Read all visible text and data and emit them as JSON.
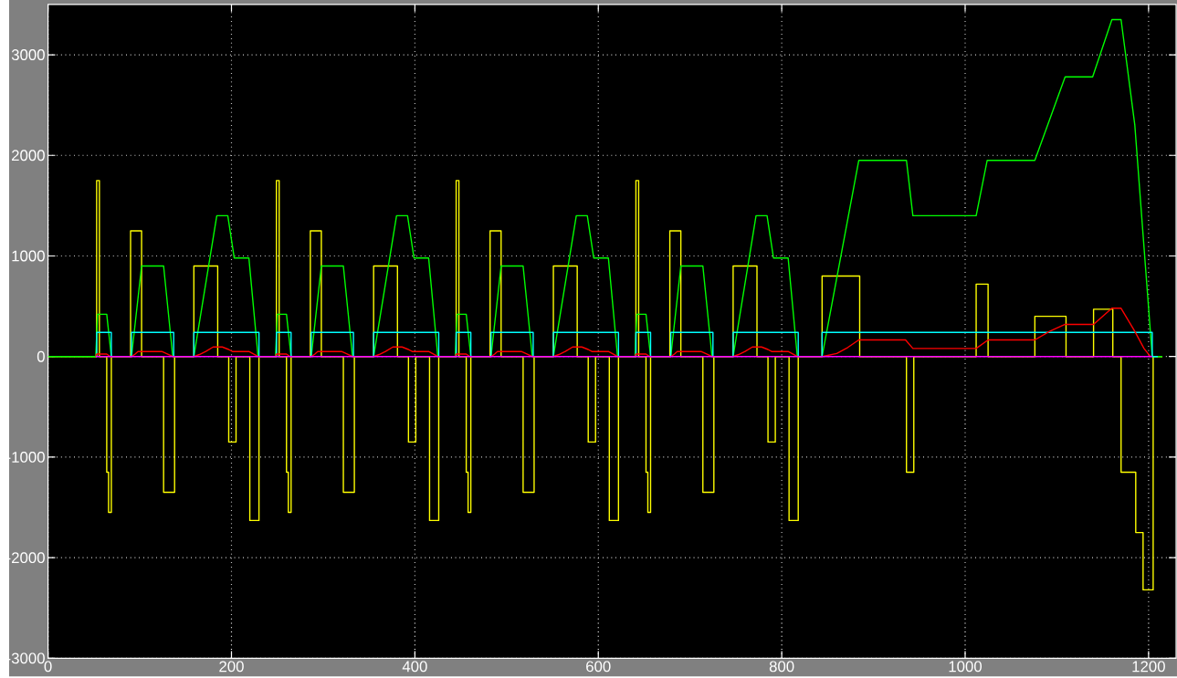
{
  "chart_data": {
    "type": "line",
    "xlim": [
      0,
      1230
    ],
    "ylim": [
      -3000,
      3500
    ],
    "xticks": [
      0,
      200,
      400,
      600,
      800,
      1000,
      1200
    ],
    "yticks": [
      -3000,
      -2000,
      -1000,
      0,
      1000,
      2000,
      3000
    ],
    "grid": true,
    "series": [
      {
        "type": "step",
        "color": "#ffff00",
        "x": [
          0,
          53,
          56,
          64,
          66,
          69,
          90,
          102,
          126,
          138,
          159,
          185,
          197,
          205,
          220,
          230,
          249,
          252,
          260,
          262,
          265,
          286,
          298,
          322,
          334,
          355,
          381,
          393,
          401,
          416,
          426,
          445,
          448,
          456,
          458,
          461,
          482,
          494,
          518,
          530,
          551,
          577,
          589,
          597,
          612,
          622,
          641,
          644,
          652,
          654,
          657,
          678,
          690,
          714,
          726,
          747,
          773,
          785,
          793,
          808,
          818,
          844,
          885,
          936,
          944,
          1012,
          1025,
          1076,
          1110,
          1140,
          1161,
          1170,
          1186,
          1194,
          1205,
          1215
        ],
        "values": [
          0,
          1750,
          0,
          -1150,
          -1550,
          0,
          1250,
          0,
          -1350,
          0,
          900,
          0,
          -850,
          0,
          -1630,
          0,
          1750,
          0,
          -1150,
          -1550,
          0,
          1250,
          0,
          -1350,
          0,
          900,
          0,
          -850,
          0,
          -1630,
          0,
          1750,
          0,
          -1150,
          -1550,
          0,
          1250,
          0,
          -1350,
          0,
          900,
          0,
          -850,
          0,
          -1630,
          0,
          1750,
          0,
          -1150,
          -1550,
          0,
          1250,
          0,
          -1350,
          0,
          900,
          0,
          -850,
          0,
          -1630,
          0,
          800,
          0,
          -1150,
          0,
          720,
          0,
          400,
          0,
          470,
          0,
          -1150,
          -1750,
          -2320,
          0,
          0
        ]
      },
      {
        "color": "#00ff00",
        "x": [
          0,
          52,
          54,
          64,
          66,
          69,
          91,
          102,
          126,
          136,
          159,
          184,
          196,
          203,
          219,
          229,
          248,
          250,
          260,
          262,
          265,
          287,
          298,
          322,
          332,
          355,
          380,
          392,
          399,
          415,
          425,
          444,
          446,
          456,
          458,
          461,
          483,
          494,
          518,
          528,
          551,
          576,
          588,
          595,
          611,
          621,
          640,
          642,
          652,
          654,
          657,
          679,
          690,
          714,
          724,
          747,
          772,
          784,
          791,
          807,
          817,
          844,
          884,
          936,
          943,
          1012,
          1024,
          1076,
          1109,
          1139,
          1160,
          1170,
          1185,
          1204,
          1215
        ],
        "values": [
          0,
          0,
          420,
          420,
          250,
          0,
          0,
          900,
          900,
          0,
          0,
          1400,
          1400,
          980,
          980,
          0,
          0,
          420,
          420,
          250,
          0,
          0,
          900,
          900,
          0,
          0,
          1400,
          1400,
          980,
          980,
          0,
          0,
          420,
          420,
          250,
          0,
          0,
          900,
          900,
          0,
          0,
          1400,
          1400,
          980,
          980,
          0,
          0,
          420,
          420,
          250,
          0,
          0,
          900,
          900,
          0,
          0,
          1400,
          1400,
          980,
          980,
          0,
          0,
          1950,
          1950,
          1400,
          1400,
          1950,
          1950,
          2780,
          2780,
          3350,
          3350,
          2300,
          0,
          0
        ]
      },
      {
        "type": "step",
        "color": "#00ffff",
        "x": [
          52,
          53,
          69,
          91,
          137,
          159,
          230,
          249,
          265,
          287,
          333,
          355,
          426,
          445,
          461,
          483,
          529,
          551,
          622,
          641,
          657,
          679,
          725,
          747,
          818,
          844,
          1204,
          1210
        ],
        "values": [
          0,
          240,
          0,
          240,
          0,
          240,
          0,
          240,
          0,
          240,
          0,
          240,
          0,
          240,
          0,
          240,
          0,
          240,
          0,
          240,
          0,
          240,
          0,
          240,
          0,
          240,
          0,
          0
        ]
      },
      {
        "color": "#ff0000",
        "x": [
          52,
          53,
          64,
          68,
          91,
          95,
          98,
          124,
          130,
          136,
          159,
          165,
          172,
          180,
          190,
          197,
          201,
          219,
          224,
          229,
          248,
          249,
          260,
          264,
          287,
          291,
          294,
          320,
          326,
          332,
          355,
          361,
          368,
          376,
          386,
          393,
          397,
          415,
          420,
          425,
          444,
          445,
          456,
          460,
          483,
          487,
          490,
          516,
          522,
          528,
          551,
          557,
          564,
          572,
          582,
          589,
          593,
          611,
          616,
          621,
          640,
          641,
          652,
          656,
          679,
          683,
          686,
          712,
          718,
          724,
          747,
          753,
          760,
          768,
          778,
          785,
          789,
          807,
          812,
          817,
          844,
          860,
          872,
          884,
          935,
          943,
          1012,
          1025,
          1076,
          1092,
          1109,
          1140,
          1160,
          1170,
          1185,
          1195,
          1202
        ],
        "values": [
          0,
          25,
          25,
          0,
          0,
          25,
          50,
          50,
          25,
          0,
          0,
          20,
          50,
          95,
          95,
          70,
          50,
          50,
          25,
          0,
          0,
          25,
          25,
          0,
          0,
          25,
          50,
          50,
          25,
          0,
          0,
          20,
          50,
          95,
          95,
          70,
          50,
          50,
          25,
          0,
          0,
          25,
          25,
          0,
          0,
          25,
          50,
          50,
          25,
          0,
          0,
          20,
          50,
          95,
          95,
          70,
          50,
          50,
          25,
          0,
          0,
          25,
          25,
          0,
          0,
          25,
          50,
          50,
          25,
          0,
          0,
          20,
          50,
          95,
          95,
          70,
          50,
          50,
          25,
          0,
          0,
          30,
          90,
          165,
          165,
          80,
          80,
          165,
          165,
          250,
          320,
          320,
          480,
          480,
          250,
          80,
          0
        ]
      },
      {
        "color": "#ff00ff",
        "x": [
          52,
          1204
        ],
        "values": [
          0,
          0
        ]
      }
    ]
  }
}
